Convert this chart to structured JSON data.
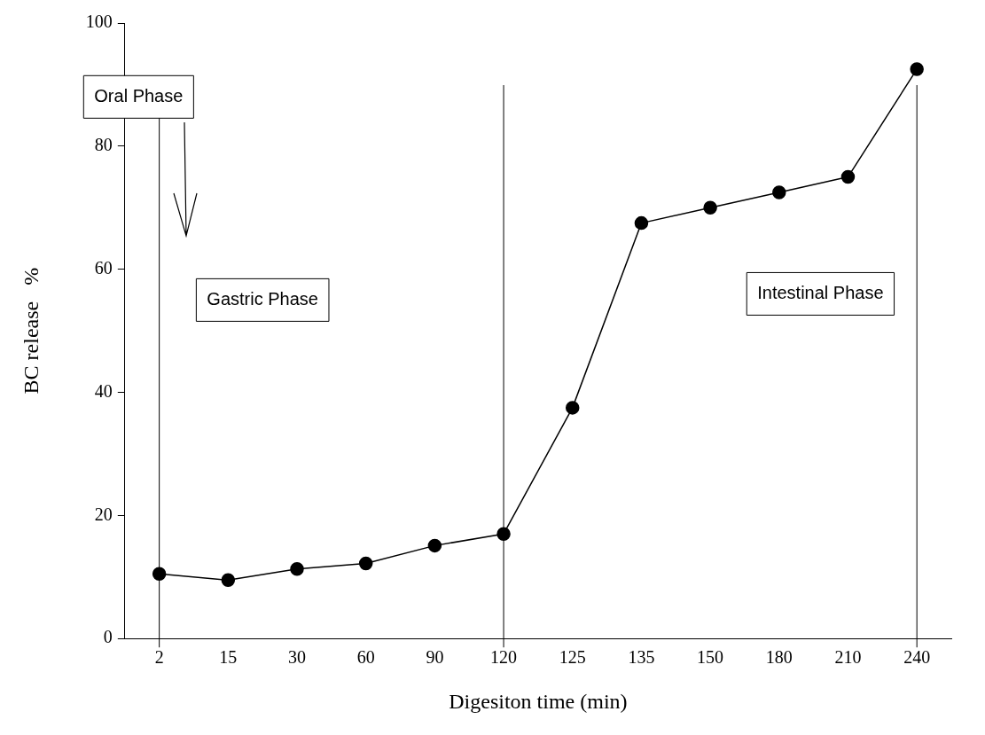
{
  "chart_data": {
    "type": "line",
    "xlabel": "Digesiton time (min)",
    "ylabel": "BC release   %",
    "categories": [
      "2",
      "15",
      "30",
      "60",
      "90",
      "120",
      "125",
      "135",
      "150",
      "180",
      "210",
      "240"
    ],
    "series": [
      {
        "color": "#000000",
        "values": [
          10.5,
          9.5,
          11.3,
          12.2,
          15.1,
          17,
          37.5,
          67.5,
          70,
          72.5,
          75,
          92.5
        ]
      }
    ],
    "ylim": [
      0,
      100
    ],
    "yticks": [
      0,
      20,
      40,
      60,
      80,
      100
    ],
    "grid": false,
    "legend": false,
    "marker": "circle",
    "line_style": "solid",
    "ref_lines": [
      {
        "axis": "x",
        "value": "2",
        "color": "#000000"
      },
      {
        "axis": "x",
        "value": "120",
        "color": "#000000"
      },
      {
        "axis": "x",
        "value": "240",
        "color": "#000000"
      }
    ],
    "annotations": [
      "Oral Phase",
      "Gastric Phase",
      "Intestinal Phase"
    ]
  }
}
